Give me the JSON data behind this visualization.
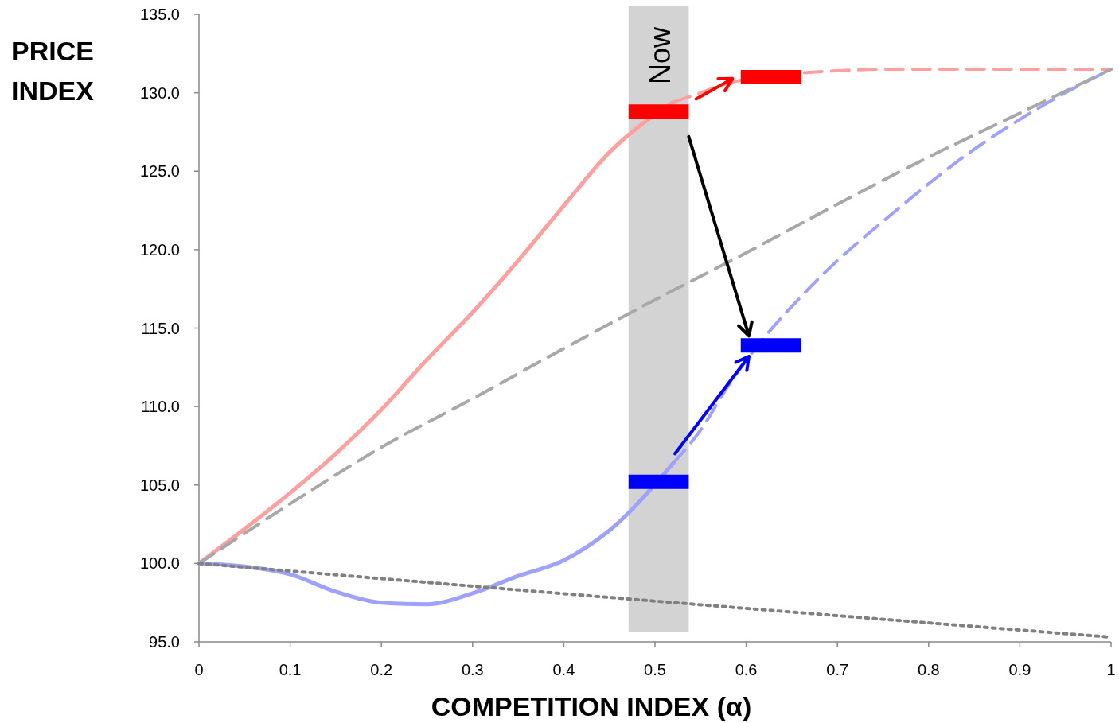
{
  "chart_data": {
    "type": "line",
    "xlabel": "COMPETITION INDEX (α)",
    "ylabel": "PRICE INDEX",
    "xlim": [
      0,
      1
    ],
    "xticks": [
      0,
      0.1,
      0.2,
      0.3,
      0.4,
      0.5,
      0.6,
      0.7,
      0.8,
      0.9,
      1
    ],
    "ylim": [
      95,
      135
    ],
    "yticks": [
      {
        "value": 95,
        "label": "95.0"
      },
      {
        "value": 100,
        "label": "100.0"
      },
      {
        "value": 105,
        "label": "105.0"
      },
      {
        "value": 110,
        "label": "110.0"
      },
      {
        "value": 115,
        "label": "115.0"
      },
      {
        "value": 120,
        "label": "120.0"
      },
      {
        "value": 125,
        "label": "125.0"
      },
      {
        "value": 130,
        "label": "130.0"
      },
      {
        "value": 135,
        "label": "135.0"
      }
    ],
    "grid": false,
    "marker": "none",
    "bands": [
      {
        "axis": "x",
        "from": 0.471,
        "to": 0.537,
        "label": "Now",
        "color": "#d3d3d3"
      }
    ],
    "series": [
      {
        "color": "#ffa0a0",
        "line_style": "solid",
        "x": [
          0,
          0.05,
          0.1,
          0.15,
          0.2,
          0.25,
          0.3,
          0.35,
          0.4,
          0.45,
          0.52
        ],
        "values": [
          100,
          102.2,
          104.5,
          107,
          109.8,
          113,
          116,
          119.3,
          122.8,
          126.2,
          129.4
        ]
      },
      {
        "color": "#ffa0a0",
        "line_style": "dashed",
        "x": [
          0.52,
          0.55,
          0.58,
          0.67,
          0.7,
          0.75,
          0.8,
          0.85,
          0.9,
          0.95,
          1
        ],
        "values": [
          129.4,
          130,
          130.6,
          131.3,
          131.4,
          131.5,
          131.5,
          131.5,
          131.5,
          131.5,
          131.5
        ]
      },
      {
        "color": "#a0a0ff",
        "line_style": "solid",
        "x": [
          0,
          0.05,
          0.1,
          0.15,
          0.2,
          0.25,
          0.3,
          0.35,
          0.4,
          0.45,
          0.52
        ],
        "values": [
          100,
          99.8,
          99.3,
          98.2,
          97.5,
          97.4,
          98.1,
          99.2,
          100.2,
          102.1,
          106.4
        ]
      },
      {
        "color": "#a0a0ff",
        "line_style": "dashed",
        "x": [
          0.52,
          0.55,
          0.58,
          0.67,
          0.7,
          0.75,
          0.8,
          0.85,
          0.9,
          0.95,
          1
        ],
        "values": [
          106.4,
          108.5,
          111.3,
          117.6,
          119.3,
          121.8,
          124.2,
          126.4,
          128.3,
          130,
          131.5
        ]
      },
      {
        "color": "#a8a8a8",
        "line_style": "dashed",
        "x": [
          0,
          0.1,
          0.2,
          0.3,
          0.4,
          0.5,
          0.6,
          0.7,
          0.8,
          0.9,
          1
        ],
        "values": [
          100,
          103.8,
          107.4,
          110.5,
          113.7,
          116.8,
          119.8,
          122.9,
          125.9,
          128.7,
          131.5
        ]
      },
      {
        "color": "#808080",
        "line_style": "dotted",
        "x": [
          0,
          0.5,
          1
        ],
        "values": [
          100,
          97.6,
          95.3
        ]
      },
      {
        "type": "step",
        "color": "#ff0000",
        "x": [
          0.471,
          0.537
        ],
        "values": [
          128.8,
          128.8
        ]
      },
      {
        "type": "step",
        "color": "#ff0000",
        "x": [
          0.594,
          0.66
        ],
        "values": [
          131.0,
          131.0
        ]
      },
      {
        "type": "step",
        "color": "#0000ff",
        "x": [
          0.471,
          0.537
        ],
        "values": [
          105.2,
          105.2
        ]
      },
      {
        "type": "step",
        "color": "#0000ff",
        "x": [
          0.594,
          0.66
        ],
        "values": [
          113.9,
          113.9
        ]
      }
    ]
  }
}
